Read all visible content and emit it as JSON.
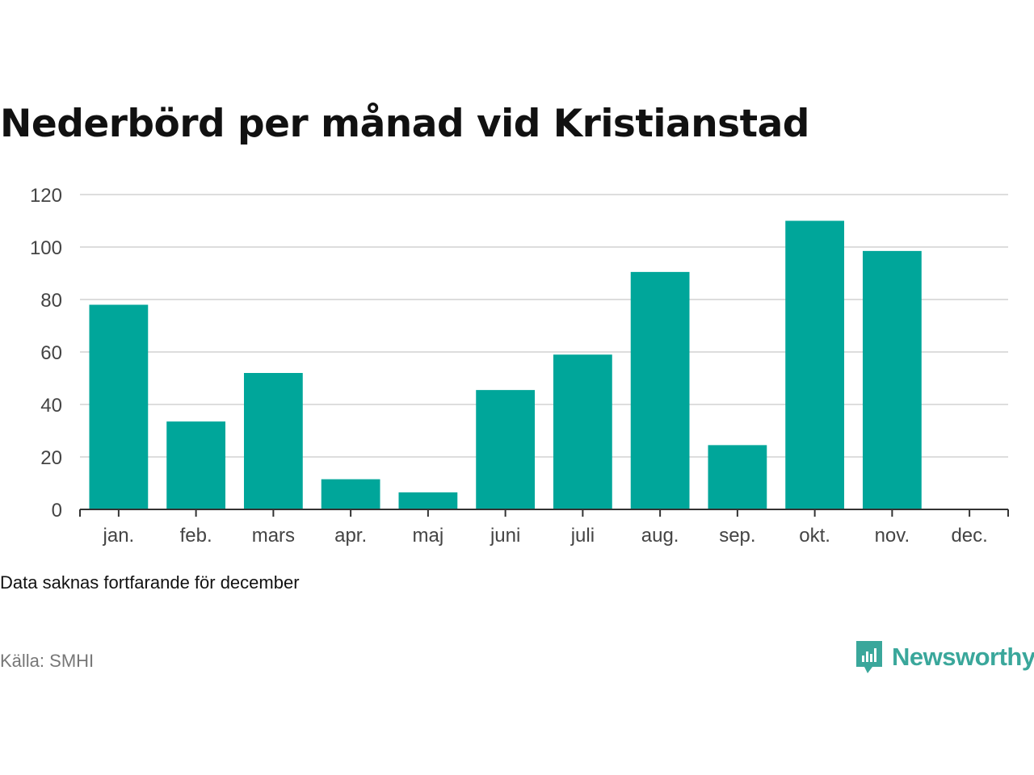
{
  "title": "Nederbörd per månad vid Kristianstad",
  "note": "Data saknas fortfarande för december",
  "source": "Källa: SMHI",
  "brand": {
    "name": "Newsworthy",
    "icon": "newsworthy-logo-icon",
    "color": "#3aa79b"
  },
  "colors": {
    "bar": "#00a69a",
    "grid": "#dddddd",
    "axis": "#333333",
    "tick_text": "#444444"
  },
  "chart_data": {
    "type": "bar",
    "title": "Nederbörd per månad vid Kristianstad",
    "xlabel": "",
    "ylabel": "",
    "categories": [
      "jan.",
      "feb.",
      "mars",
      "apr.",
      "maj",
      "juni",
      "juli",
      "aug.",
      "sep.",
      "okt.",
      "nov.",
      "dec."
    ],
    "values": [
      78,
      33.5,
      52,
      11.5,
      6.5,
      45.5,
      59,
      90.5,
      24.5,
      110,
      98.5,
      null
    ],
    "ylim": [
      0,
      120
    ],
    "yticks": [
      0,
      20,
      40,
      60,
      80,
      100,
      120
    ],
    "grid": true,
    "legend": "none"
  }
}
